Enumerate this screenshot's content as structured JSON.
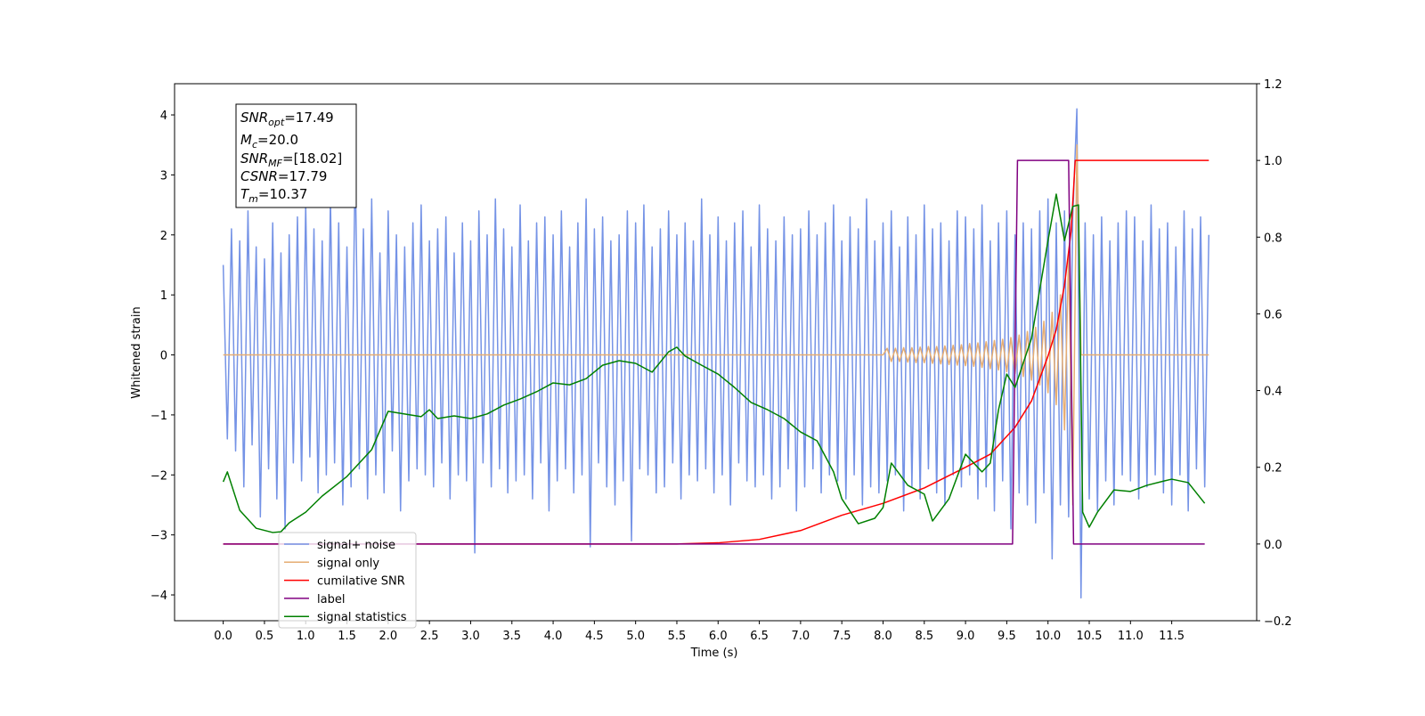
{
  "chart_data": {
    "type": "line",
    "xlabel": "Time (s)",
    "ylabel": "Whitened strain",
    "xlim": [
      -0.59,
      12.53
    ],
    "ylim": [
      -4.43,
      4.52
    ],
    "y2lim": [
      -0.2,
      1.2
    ],
    "xticks": [
      {
        "value": 0,
        "label": "0.0"
      },
      {
        "value": 0.5,
        "label": "0.5"
      },
      {
        "value": 1,
        "label": "1.0"
      },
      {
        "value": 1.5,
        "label": "1.5"
      },
      {
        "value": 2,
        "label": "2.0"
      },
      {
        "value": 2.5,
        "label": "2.5"
      },
      {
        "value": 3,
        "label": "3.0"
      },
      {
        "value": 3.5,
        "label": "3.5"
      },
      {
        "value": 4,
        "label": "4.0"
      },
      {
        "value": 4.5,
        "label": "4.5"
      },
      {
        "value": 5,
        "label": "5.0"
      },
      {
        "value": 5.5,
        "label": "5.5"
      },
      {
        "value": 6,
        "label": "6.0"
      },
      {
        "value": 6.5,
        "label": "6.5"
      },
      {
        "value": 7,
        "label": "7.0"
      },
      {
        "value": 7.5,
        "label": "7.5"
      },
      {
        "value": 8,
        "label": "8.0"
      },
      {
        "value": 8.5,
        "label": "8.5"
      },
      {
        "value": 9,
        "label": "9.0"
      },
      {
        "value": 9.5,
        "label": "9.5"
      },
      {
        "value": 10,
        "label": "10.0"
      },
      {
        "value": 10.5,
        "label": "10.5"
      },
      {
        "value": 11,
        "label": "11.0"
      },
      {
        "value": 11.5,
        "label": "11.5"
      }
    ],
    "yticks": [
      {
        "value": -4,
        "label": "−4"
      },
      {
        "value": -3,
        "label": "−3"
      },
      {
        "value": -2,
        "label": "−2"
      },
      {
        "value": -1,
        "label": "−1"
      },
      0,
      1,
      2,
      3,
      4
    ],
    "y2ticks": [
      {
        "value": -0.2,
        "label": "−0.2"
      },
      {
        "value": 0,
        "label": "0.0"
      },
      {
        "value": 0.2,
        "label": "0.2"
      },
      {
        "value": 0.4,
        "label": "0.4"
      },
      {
        "value": 0.6,
        "label": "0.6"
      },
      {
        "value": 0.8,
        "label": "0.8"
      },
      {
        "value": 1,
        "label": "1.0"
      },
      {
        "value": 1.2,
        "label": "1.2"
      }
    ],
    "legend": "lower left",
    "annotations": [
      {
        "base": "SNR",
        "sub": "opt",
        "rest": "=17.49"
      },
      {
        "base": "M",
        "sub": "c",
        "rest": "=20.0"
      },
      {
        "base": "SNR",
        "sub": "MF",
        "rest": "=[18.02]"
      },
      {
        "base": "CSNR",
        "rest": "=17.79"
      },
      {
        "base": "T",
        "sub": "m",
        "rest": "=10.37"
      }
    ],
    "series": [
      {
        "name": "signal+ noise",
        "color": "#7593e6",
        "x": [
          0,
          0.05,
          0.1,
          0.15,
          0.2,
          0.25,
          0.3,
          0.35,
          0.4,
          0.45,
          0.5,
          0.55,
          0.6,
          0.65,
          0.7,
          0.75,
          0.8,
          0.85,
          0.9,
          0.95,
          1,
          1.05,
          1.1,
          1.15,
          1.2,
          1.25,
          1.3,
          1.35,
          1.4,
          1.45,
          1.5,
          1.55,
          1.6,
          1.65,
          1.7,
          1.75,
          1.8,
          1.85,
          1.9,
          1.95,
          2,
          2.05,
          2.1,
          2.15,
          2.2,
          2.25,
          2.3,
          2.35,
          2.4,
          2.45,
          2.5,
          2.55,
          2.6,
          2.65,
          2.7,
          2.75,
          2.8,
          2.85,
          2.9,
          2.95,
          3,
          3.05,
          3.1,
          3.15,
          3.2,
          3.25,
          3.3,
          3.35,
          3.4,
          3.45,
          3.5,
          3.55,
          3.6,
          3.65,
          3.7,
          3.75,
          3.8,
          3.85,
          3.9,
          3.95,
          4,
          4.05,
          4.1,
          4.15,
          4.2,
          4.25,
          4.3,
          4.35,
          4.4,
          4.45,
          4.5,
          4.55,
          4.6,
          4.65,
          4.7,
          4.75,
          4.8,
          4.85,
          4.9,
          4.95,
          5,
          5.05,
          5.1,
          5.15,
          5.2,
          5.25,
          5.3,
          5.35,
          5.4,
          5.45,
          5.5,
          5.55,
          5.6,
          5.65,
          5.7,
          5.75,
          5.8,
          5.85,
          5.9,
          5.95,
          6,
          6.05,
          6.1,
          6.15,
          6.2,
          6.25,
          6.3,
          6.35,
          6.4,
          6.45,
          6.5,
          6.55,
          6.6,
          6.65,
          6.7,
          6.75,
          6.8,
          6.85,
          6.9,
          6.95,
          7,
          7.05,
          7.1,
          7.15,
          7.2,
          7.25,
          7.3,
          7.35,
          7.4,
          7.45,
          7.5,
          7.55,
          7.6,
          7.65,
          7.7,
          7.75,
          7.8,
          7.85,
          7.9,
          7.95,
          8,
          8.05,
          8.1,
          8.15,
          8.2,
          8.25,
          8.3,
          8.35,
          8.4,
          8.45,
          8.5,
          8.55,
          8.6,
          8.65,
          8.7,
          8.75,
          8.8,
          8.85,
          8.9,
          8.95,
          9,
          9.05,
          9.1,
          9.15,
          9.2,
          9.25,
          9.3,
          9.35,
          9.4,
          9.45,
          9.5,
          9.55,
          9.6,
          9.65,
          9.7,
          9.75,
          9.8,
          9.85,
          9.9,
          9.95,
          10,
          10.05,
          10.1,
          10.15,
          10.2,
          10.25,
          10.3,
          10.35,
          10.4,
          10.45,
          10.5,
          10.55,
          10.6,
          10.65,
          10.7,
          10.75,
          10.8,
          10.85,
          10.9,
          10.95,
          11,
          11.05,
          11.1,
          11.15,
          11.2,
          11.25,
          11.3,
          11.35,
          11.4,
          11.45,
          11.5,
          11.55,
          11.6,
          11.65,
          11.7,
          11.75,
          11.8,
          11.85,
          11.9,
          11.95
        ],
        "values": [
          1.5,
          -1.4,
          2.1,
          -1.6,
          1.9,
          -2.2,
          2.4,
          -1.5,
          1.8,
          -2.7,
          1.6,
          -1.9,
          2.2,
          -2.4,
          1.7,
          -2.9,
          2.0,
          -1.8,
          2.3,
          -2.1,
          2.5,
          -1.7,
          2.1,
          -2.3,
          1.9,
          -2.0,
          2.6,
          -1.8,
          2.2,
          -2.5,
          1.8,
          -2.2,
          3.3,
          -1.9,
          2.1,
          -2.4,
          2.6,
          -2.0,
          1.7,
          -2.3,
          2.4,
          -1.6,
          2.0,
          -2.6,
          1.8,
          -2.1,
          2.2,
          -1.9,
          2.5,
          -2.0,
          1.9,
          -2.2,
          2.1,
          -1.8,
          2.3,
          -2.4,
          1.7,
          -2.0,
          2.2,
          -2.1,
          1.9,
          -3.3,
          2.4,
          -1.8,
          2.0,
          -2.2,
          2.6,
          -1.9,
          2.1,
          -2.3,
          1.8,
          -2.1,
          2.5,
          -2.0,
          1.9,
          -2.4,
          2.2,
          -1.8,
          2.3,
          -2.6,
          2.0,
          -2.1,
          2.4,
          -1.9,
          1.8,
          -2.3,
          2.2,
          -2.0,
          2.6,
          -3.2,
          2.1,
          -1.8,
          2.3,
          -2.2,
          1.9,
          -2.5,
          2.0,
          -2.1,
          2.4,
          -3.1,
          2.2,
          -1.9,
          2.5,
          -2.0,
          1.8,
          -2.3,
          2.1,
          -2.2,
          2.4,
          -1.8,
          2.0,
          -2.4,
          2.2,
          -2.0,
          1.9,
          -2.1,
          2.6,
          -1.9,
          2.0,
          -2.3,
          2.3,
          -2.0,
          1.9,
          -2.5,
          2.2,
          -1.8,
          2.4,
          -2.1,
          1.8,
          -2.2,
          2.5,
          -2.0,
          2.1,
          -2.4,
          1.9,
          -2.2,
          2.3,
          -1.9,
          2.0,
          -2.6,
          2.1,
          -2.2,
          2.4,
          -1.9,
          2.0,
          -2.3,
          2.2,
          -2.0,
          2.5,
          -2.1,
          1.9,
          -2.4,
          2.3,
          -2.0,
          2.1,
          -2.5,
          2.6,
          -2.2,
          1.9,
          -2.3,
          2.2,
          -2.1,
          2.4,
          -2.0,
          1.8,
          -2.6,
          2.3,
          -2.2,
          2.0,
          -2.4,
          2.5,
          -1.9,
          2.1,
          -2.3,
          2.2,
          -2.5,
          1.9,
          -2.0,
          2.4,
          -2.2,
          2.3,
          -2.0,
          2.1,
          -2.4,
          2.5,
          -2.2,
          1.9,
          -2.6,
          2.2,
          -2.1,
          2.4,
          -2.9,
          2.0,
          -2.3,
          2.2,
          -2.5,
          2.1,
          -2.8,
          2.4,
          -2.3,
          2.6,
          -3.4,
          2.2,
          -2.5,
          2.4,
          -2.7,
          2.3,
          4.1,
          -4.05,
          2.2,
          -2.4,
          2.0,
          -2.6,
          2.3,
          -2.1,
          1.9,
          -2.5,
          2.2,
          -2.0,
          2.4,
          -2.1,
          2.3,
          -2.4,
          1.9,
          -2.2,
          2.5,
          -2.0,
          2.1,
          -2.3,
          2.2,
          -2.5,
          1.8,
          -2.0,
          2.4,
          -2.6,
          2.1,
          -1.9,
          2.3,
          -2.2,
          2.0
        ]
      },
      {
        "name": "signal only",
        "color": "#e6ad72",
        "x": [
          0,
          8.0,
          8.05,
          8.1,
          8.15,
          8.2,
          8.25,
          8.3,
          8.35,
          8.4,
          8.45,
          8.5,
          8.55,
          8.6,
          8.65,
          8.7,
          8.75,
          8.8,
          8.85,
          8.9,
          8.95,
          9.0,
          9.05,
          9.1,
          9.15,
          9.2,
          9.25,
          9.3,
          9.35,
          9.4,
          9.45,
          9.5,
          9.55,
          9.6,
          9.65,
          9.7,
          9.75,
          9.8,
          9.85,
          9.9,
          9.95,
          10.0,
          10.05,
          10.1,
          10.15,
          10.2,
          10.25,
          10.3,
          10.35,
          10.4,
          11.95
        ],
        "values": [
          0,
          0,
          0.11,
          -0.11,
          0.11,
          -0.11,
          0.12,
          -0.12,
          0.12,
          -0.13,
          0.13,
          -0.13,
          0.14,
          -0.14,
          0.14,
          -0.15,
          0.15,
          -0.16,
          0.16,
          -0.17,
          0.17,
          -0.18,
          0.19,
          -0.19,
          0.2,
          -0.21,
          0.22,
          -0.23,
          0.24,
          -0.25,
          0.26,
          -0.28,
          0.29,
          -0.31,
          0.33,
          -0.36,
          0.39,
          -0.42,
          0.46,
          -0.5,
          0.56,
          -0.63,
          0.71,
          -0.83,
          1.0,
          -1.25,
          1.67,
          -2.5,
          3.5,
          0,
          0
        ]
      },
      {
        "name": "cumilative SNR",
        "color": "#ff0000",
        "axis": "y2",
        "x": [
          0,
          5.5,
          6.0,
          6.5,
          7.0,
          7.5,
          8.0,
          8.5,
          9.0,
          9.3,
          9.6,
          9.8,
          10.0,
          10.1,
          10.2,
          10.28,
          10.33,
          11.95
        ],
        "values": [
          0,
          0,
          0.003,
          0.012,
          0.035,
          0.075,
          0.106,
          0.146,
          0.2,
          0.234,
          0.304,
          0.373,
          0.49,
          0.559,
          0.675,
          0.815,
          1.0,
          1.0
        ]
      },
      {
        "name": "label",
        "color": "#800080",
        "axis": "y2",
        "x": [
          0,
          9.57,
          9.63,
          10.25,
          10.31,
          11.9
        ],
        "values": [
          0,
          0,
          1,
          1,
          0,
          0
        ]
      },
      {
        "name": "signal statistics",
        "color": "#008000",
        "axis": "y2",
        "x": [
          0,
          0.05,
          0.2,
          0.4,
          0.6,
          0.7,
          0.8,
          1.0,
          1.2,
          1.5,
          1.8,
          2.0,
          2.2,
          2.4,
          2.5,
          2.6,
          2.8,
          3.0,
          3.2,
          3.4,
          3.6,
          3.8,
          4.0,
          4.2,
          4.4,
          4.6,
          4.8,
          5.0,
          5.2,
          5.4,
          5.5,
          5.6,
          5.8,
          6.0,
          6.2,
          6.4,
          6.6,
          6.8,
          7.0,
          7.2,
          7.4,
          7.5,
          7.7,
          7.9,
          8.0,
          8.1,
          8.3,
          8.5,
          8.6,
          8.8,
          9.0,
          9.2,
          9.3,
          9.4,
          9.5,
          9.6,
          9.8,
          10.0,
          10.1,
          10.2,
          10.3,
          10.37,
          10.42,
          10.5,
          10.6,
          10.8,
          11.0,
          11.2,
          11.4,
          11.5,
          11.7,
          11.9
        ],
        "values": [
          0.162,
          0.188,
          0.088,
          0.041,
          0.03,
          0.032,
          0.055,
          0.083,
          0.125,
          0.176,
          0.246,
          0.346,
          0.339,
          0.332,
          0.35,
          0.327,
          0.334,
          0.327,
          0.339,
          0.362,
          0.378,
          0.397,
          0.42,
          0.415,
          0.431,
          0.466,
          0.478,
          0.471,
          0.448,
          0.501,
          0.513,
          0.49,
          0.466,
          0.443,
          0.408,
          0.369,
          0.35,
          0.327,
          0.292,
          0.269,
          0.188,
          0.118,
          0.053,
          0.067,
          0.095,
          0.211,
          0.153,
          0.13,
          0.06,
          0.118,
          0.234,
          0.188,
          0.211,
          0.35,
          0.443,
          0.408,
          0.536,
          0.791,
          0.912,
          0.791,
          0.88,
          0.884,
          0.083,
          0.044,
          0.083,
          0.141,
          0.137,
          0.153,
          0.164,
          0.169,
          0.16,
          0.106
        ]
      }
    ]
  }
}
